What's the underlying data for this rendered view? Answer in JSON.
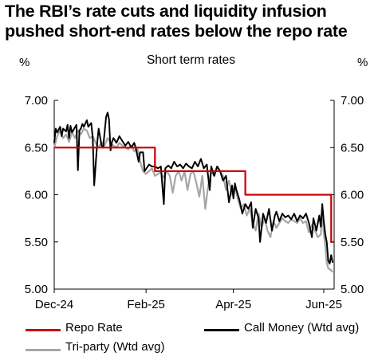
{
  "header": {
    "title_line1": "The RBI’s rate cuts and liquidity infusion",
    "title_line2": "pushed short-end rates below the repo rate",
    "left_unit": "%",
    "right_unit": "%",
    "chart_title": "Short term rates"
  },
  "chart_data": {
    "type": "line",
    "title": "Short term rates",
    "ylabel": "%",
    "ylabel_right": "%",
    "ylim": [
      5.0,
      7.0
    ],
    "yticks": [
      "7.00",
      "6.50",
      "6.00",
      "5.50",
      "5.00"
    ],
    "ytick_values": [
      7.0,
      6.5,
      6.0,
      5.5,
      5.0
    ],
    "xlim": [
      "2024-12-01",
      "2025-06-08"
    ],
    "xticks": [
      {
        "label": "Dec-24",
        "date": "2024-12-01"
      },
      {
        "label": "Feb-25",
        "date": "2025-02-01"
      },
      {
        "label": "Apr-25",
        "date": "2025-04-01"
      },
      {
        "label": "Jun-25",
        "date": "2025-06-01"
      }
    ],
    "grid": false,
    "legend_position": "bottom",
    "series": [
      {
        "name": "Repo Rate",
        "color": "#cc0000",
        "points": [
          [
            "2024-12-01",
            6.5
          ],
          [
            "2025-02-07",
            6.5
          ],
          [
            "2025-02-07",
            6.25
          ],
          [
            "2025-04-09",
            6.25
          ],
          [
            "2025-04-09",
            6.0
          ],
          [
            "2025-06-06",
            6.0
          ],
          [
            "2025-06-06",
            5.5
          ],
          [
            "2025-06-08",
            5.5
          ]
        ]
      },
      {
        "name": "Call Money (Wtd avg)",
        "color": "#000000",
        "points": [
          [
            "2024-12-01",
            6.55
          ],
          [
            "2024-12-02",
            6.7
          ],
          [
            "2024-12-03",
            6.66
          ],
          [
            "2024-12-05",
            6.72
          ],
          [
            "2024-12-06",
            6.62
          ],
          [
            "2024-12-07",
            6.7
          ],
          [
            "2024-12-09",
            6.67
          ],
          [
            "2024-12-10",
            6.74
          ],
          [
            "2024-12-11",
            6.6
          ],
          [
            "2024-12-12",
            6.73
          ],
          [
            "2024-12-13",
            6.66
          ],
          [
            "2024-12-16",
            6.74
          ],
          [
            "2024-12-17",
            6.26
          ],
          [
            "2024-12-18",
            6.68
          ],
          [
            "2024-12-19",
            6.7
          ],
          [
            "2024-12-20",
            6.75
          ],
          [
            "2024-12-21",
            6.72
          ],
          [
            "2024-12-23",
            6.79
          ],
          [
            "2024-12-24",
            6.72
          ],
          [
            "2024-12-26",
            6.76
          ],
          [
            "2024-12-27",
            6.6
          ],
          [
            "2024-12-28",
            6.1
          ],
          [
            "2024-12-30",
            6.55
          ],
          [
            "2024-12-31",
            6.7
          ],
          [
            "2025-01-02",
            6.52
          ],
          [
            "2025-01-03",
            6.5
          ],
          [
            "2025-01-05",
            6.82
          ],
          [
            "2025-01-06",
            6.87
          ],
          [
            "2025-01-07",
            6.8
          ],
          [
            "2025-01-08",
            6.47
          ],
          [
            "2025-01-09",
            6.56
          ],
          [
            "2025-01-10",
            6.6
          ],
          [
            "2025-01-12",
            6.55
          ],
          [
            "2025-01-14",
            6.62
          ],
          [
            "2025-01-16",
            6.57
          ],
          [
            "2025-01-18",
            6.52
          ],
          [
            "2025-01-20",
            6.56
          ],
          [
            "2025-01-22",
            6.5
          ],
          [
            "2025-01-24",
            6.55
          ],
          [
            "2025-01-25",
            6.5
          ],
          [
            "2025-01-27",
            6.35
          ],
          [
            "2025-01-28",
            6.45
          ],
          [
            "2025-01-30",
            6.45
          ],
          [
            "2025-01-31",
            6.25
          ],
          [
            "2025-02-03",
            6.32
          ],
          [
            "2025-02-05",
            6.3
          ],
          [
            "2025-02-07",
            6.3
          ],
          [
            "2025-02-09",
            6.28
          ],
          [
            "2025-02-11",
            6.3
          ],
          [
            "2025-02-13",
            5.9
          ],
          [
            "2025-02-14",
            6.28
          ],
          [
            "2025-02-16",
            6.31
          ],
          [
            "2025-02-18",
            6.28
          ],
          [
            "2025-02-20",
            6.35
          ],
          [
            "2025-02-22",
            6.3
          ],
          [
            "2025-02-24",
            6.32
          ],
          [
            "2025-02-26",
            6.28
          ],
          [
            "2025-02-28",
            6.33
          ],
          [
            "2025-03-02",
            6.3
          ],
          [
            "2025-03-04",
            6.28
          ],
          [
            "2025-03-06",
            6.35
          ],
          [
            "2025-03-08",
            6.3
          ],
          [
            "2025-03-10",
            6.38
          ],
          [
            "2025-03-12",
            6.28
          ],
          [
            "2025-03-14",
            6.32
          ],
          [
            "2025-03-16",
            6.05
          ],
          [
            "2025-03-17",
            6.3
          ],
          [
            "2025-03-19",
            6.2
          ],
          [
            "2025-03-21",
            6.3
          ],
          [
            "2025-03-23",
            6.25
          ],
          [
            "2025-03-25",
            6.15
          ],
          [
            "2025-03-27",
            6.2
          ],
          [
            "2025-03-29",
            5.92
          ],
          [
            "2025-03-31",
            6.1
          ],
          [
            "2025-04-01",
            5.96
          ],
          [
            "2025-04-02",
            6.12
          ],
          [
            "2025-04-03",
            6.05
          ],
          [
            "2025-04-05",
            5.95
          ],
          [
            "2025-04-07",
            5.8
          ],
          [
            "2025-04-09",
            5.9
          ],
          [
            "2025-04-11",
            5.85
          ],
          [
            "2025-04-13",
            5.92
          ],
          [
            "2025-04-14",
            5.65
          ],
          [
            "2025-04-16",
            5.85
          ],
          [
            "2025-04-18",
            5.75
          ],
          [
            "2025-04-19",
            5.5
          ],
          [
            "2025-04-21",
            5.8
          ],
          [
            "2025-04-23",
            5.7
          ],
          [
            "2025-04-25",
            5.85
          ],
          [
            "2025-04-27",
            5.62
          ],
          [
            "2025-04-29",
            5.78
          ],
          [
            "2025-04-30",
            5.82
          ],
          [
            "2025-05-02",
            5.72
          ],
          [
            "2025-05-04",
            5.8
          ],
          [
            "2025-05-06",
            5.76
          ],
          [
            "2025-05-08",
            5.78
          ],
          [
            "2025-05-10",
            5.74
          ],
          [
            "2025-05-12",
            5.8
          ],
          [
            "2025-05-14",
            5.72
          ],
          [
            "2025-05-16",
            5.78
          ],
          [
            "2025-05-18",
            5.75
          ],
          [
            "2025-05-20",
            5.8
          ],
          [
            "2025-05-22",
            5.7
          ],
          [
            "2025-05-24",
            5.55
          ],
          [
            "2025-05-25",
            5.75
          ],
          [
            "2025-05-27",
            5.62
          ],
          [
            "2025-05-29",
            5.78
          ],
          [
            "2025-05-30",
            5.66
          ],
          [
            "2025-05-31",
            5.9
          ],
          [
            "2025-06-01",
            5.72
          ],
          [
            "2025-06-02",
            5.58
          ],
          [
            "2025-06-03",
            5.5
          ],
          [
            "2025-06-04",
            5.3
          ],
          [
            "2025-06-05",
            5.27
          ],
          [
            "2025-06-06",
            5.36
          ],
          [
            "2025-06-07",
            5.28
          ]
        ]
      },
      {
        "name": "Tri-party  (Wtd avg)",
        "color": "#a6a6a6",
        "points": [
          [
            "2024-12-01",
            6.5
          ],
          [
            "2024-12-03",
            6.62
          ],
          [
            "2024-12-05",
            6.68
          ],
          [
            "2024-12-07",
            6.6
          ],
          [
            "2024-12-09",
            6.64
          ],
          [
            "2024-12-11",
            6.56
          ],
          [
            "2024-12-13",
            6.66
          ],
          [
            "2024-12-15",
            6.6
          ],
          [
            "2024-12-17",
            6.68
          ],
          [
            "2024-12-19",
            6.64
          ],
          [
            "2024-12-21",
            6.7
          ],
          [
            "2024-12-23",
            6.68
          ],
          [
            "2024-12-25",
            6.6
          ],
          [
            "2024-12-27",
            6.62
          ],
          [
            "2024-12-29",
            6.55
          ],
          [
            "2024-12-31",
            6.5
          ],
          [
            "2025-01-02",
            6.56
          ],
          [
            "2025-01-04",
            6.52
          ],
          [
            "2025-01-06",
            6.6
          ],
          [
            "2025-01-08",
            6.55
          ],
          [
            "2025-01-10",
            6.52
          ],
          [
            "2025-01-12",
            6.5
          ],
          [
            "2025-01-14",
            6.55
          ],
          [
            "2025-01-16",
            6.52
          ],
          [
            "2025-01-18",
            6.5
          ],
          [
            "2025-01-20",
            6.48
          ],
          [
            "2025-01-22",
            6.52
          ],
          [
            "2025-01-24",
            6.46
          ],
          [
            "2025-01-26",
            6.5
          ],
          [
            "2025-01-28",
            6.35
          ],
          [
            "2025-01-30",
            6.25
          ],
          [
            "2025-02-01",
            6.22
          ],
          [
            "2025-02-03",
            6.25
          ],
          [
            "2025-02-05",
            6.28
          ],
          [
            "2025-02-07",
            6.2
          ],
          [
            "2025-02-09",
            6.22
          ],
          [
            "2025-02-11",
            6.24
          ],
          [
            "2025-02-13",
            6.18
          ],
          [
            "2025-02-15",
            6.25
          ],
          [
            "2025-02-17",
            6.2
          ],
          [
            "2025-02-19",
            6.02
          ],
          [
            "2025-02-21",
            6.2
          ],
          [
            "2025-02-23",
            6.25
          ],
          [
            "2025-02-25",
            6.15
          ],
          [
            "2025-02-27",
            6.25
          ],
          [
            "2025-03-01",
            6.05
          ],
          [
            "2025-03-03",
            6.22
          ],
          [
            "2025-03-05",
            6.25
          ],
          [
            "2025-03-07",
            6.12
          ],
          [
            "2025-03-09",
            5.98
          ],
          [
            "2025-03-11",
            6.2
          ],
          [
            "2025-03-13",
            5.85
          ],
          [
            "2025-03-15",
            6.1
          ],
          [
            "2025-03-17",
            6.25
          ],
          [
            "2025-03-19",
            6.2
          ],
          [
            "2025-03-21",
            6.3
          ],
          [
            "2025-03-23",
            6.25
          ],
          [
            "2025-03-25",
            6.2
          ],
          [
            "2025-03-27",
            6.05
          ],
          [
            "2025-03-29",
            6.15
          ],
          [
            "2025-03-31",
            6.0
          ],
          [
            "2025-04-02",
            6.1
          ],
          [
            "2025-04-04",
            5.95
          ],
          [
            "2025-04-06",
            5.85
          ],
          [
            "2025-04-08",
            5.9
          ],
          [
            "2025-04-10",
            5.78
          ],
          [
            "2025-04-12",
            5.85
          ],
          [
            "2025-04-14",
            5.7
          ],
          [
            "2025-04-16",
            5.62
          ],
          [
            "2025-04-18",
            5.8
          ],
          [
            "2025-04-20",
            5.65
          ],
          [
            "2025-04-22",
            5.75
          ],
          [
            "2025-04-24",
            5.62
          ],
          [
            "2025-04-26",
            5.55
          ],
          [
            "2025-04-28",
            5.72
          ],
          [
            "2025-04-30",
            5.65
          ],
          [
            "2025-05-02",
            5.7
          ],
          [
            "2025-05-04",
            5.75
          ],
          [
            "2025-05-06",
            5.72
          ],
          [
            "2025-05-08",
            5.7
          ],
          [
            "2025-05-10",
            5.74
          ],
          [
            "2025-05-12",
            5.72
          ],
          [
            "2025-05-14",
            5.7
          ],
          [
            "2025-05-16",
            5.75
          ],
          [
            "2025-05-18",
            5.7
          ],
          [
            "2025-05-20",
            5.72
          ],
          [
            "2025-05-22",
            5.6
          ],
          [
            "2025-05-24",
            5.68
          ],
          [
            "2025-05-26",
            5.62
          ],
          [
            "2025-05-28",
            5.55
          ],
          [
            "2025-05-30",
            5.58
          ],
          [
            "2025-05-31",
            5.82
          ],
          [
            "2025-06-01",
            5.6
          ],
          [
            "2025-06-02",
            5.45
          ],
          [
            "2025-06-03",
            5.28
          ],
          [
            "2025-06-04",
            5.22
          ],
          [
            "2025-06-06",
            5.2
          ],
          [
            "2025-06-07",
            5.18
          ]
        ]
      }
    ]
  }
}
